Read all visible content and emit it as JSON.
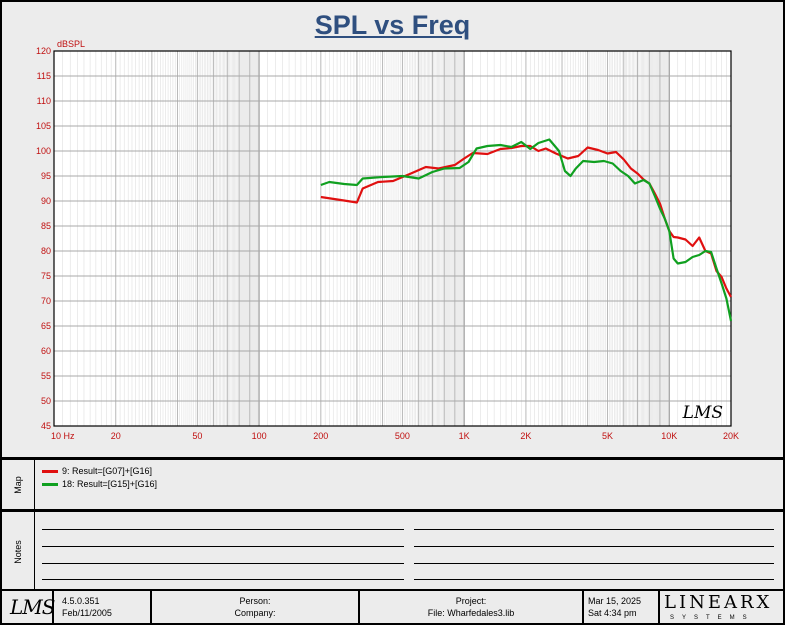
{
  "chart_data": {
    "type": "line",
    "title": "SPL vs Freq",
    "ylabel": "dBSPL",
    "xscale": "log",
    "xlim": [
      10,
      20000
    ],
    "ylim": [
      45,
      120
    ],
    "x_ticks": [
      {
        "value": 10,
        "label": "10  Hz"
      },
      {
        "value": 20,
        "label": "20"
      },
      {
        "value": 50,
        "label": "50"
      },
      {
        "value": 100,
        "label": "100"
      },
      {
        "value": 200,
        "label": "200"
      },
      {
        "value": 500,
        "label": "500"
      },
      {
        "value": 1000,
        "label": "1K"
      },
      {
        "value": 2000,
        "label": "2K"
      },
      {
        "value": 5000,
        "label": "5K"
      },
      {
        "value": 10000,
        "label": "10K"
      },
      {
        "value": 20000,
        "label": "20K"
      }
    ],
    "y_ticks": [
      45,
      50,
      55,
      60,
      65,
      70,
      75,
      80,
      85,
      90,
      95,
      100,
      105,
      110,
      115,
      120
    ],
    "grid": true,
    "watermark": "LMS",
    "series": [
      {
        "name": "9: Result=[G07]+[G16]",
        "color": "#e01010",
        "points": [
          [
            200,
            90.8
          ],
          [
            250,
            90.2
          ],
          [
            300,
            89.7
          ],
          [
            320,
            92.5
          ],
          [
            380,
            93.8
          ],
          [
            450,
            94.0
          ],
          [
            550,
            95.5
          ],
          [
            650,
            96.8
          ],
          [
            750,
            96.5
          ],
          [
            900,
            97.2
          ],
          [
            1000,
            98.5
          ],
          [
            1100,
            99.6
          ],
          [
            1300,
            99.4
          ],
          [
            1500,
            100.4
          ],
          [
            1700,
            100.6
          ],
          [
            1900,
            101.0
          ],
          [
            2100,
            101.0
          ],
          [
            2300,
            100.0
          ],
          [
            2500,
            100.5
          ],
          [
            2800,
            99.5
          ],
          [
            3200,
            98.5
          ],
          [
            3600,
            99.0
          ],
          [
            4000,
            100.7
          ],
          [
            4500,
            100.2
          ],
          [
            5000,
            99.5
          ],
          [
            5500,
            99.8
          ],
          [
            6000,
            98.3
          ],
          [
            6500,
            96.5
          ],
          [
            7000,
            95.5
          ],
          [
            7500,
            94.3
          ],
          [
            8000,
            93.5
          ],
          [
            8500,
            91.5
          ],
          [
            9000,
            89.5
          ],
          [
            9500,
            86.5
          ],
          [
            10000,
            84.0
          ],
          [
            10500,
            82.8
          ],
          [
            11000,
            82.7
          ],
          [
            12000,
            82.3
          ],
          [
            13000,
            81.0
          ],
          [
            14000,
            82.7
          ],
          [
            15000,
            80.0
          ],
          [
            16000,
            79.5
          ],
          [
            17000,
            76.0
          ],
          [
            18000,
            74.8
          ],
          [
            19000,
            72.5
          ],
          [
            20000,
            70.8
          ]
        ]
      },
      {
        "name": "18: Result=[G15]+[G16]",
        "color": "#10a020",
        "points": [
          [
            200,
            93.2
          ],
          [
            220,
            93.8
          ],
          [
            260,
            93.4
          ],
          [
            300,
            93.2
          ],
          [
            320,
            94.5
          ],
          [
            400,
            94.8
          ],
          [
            500,
            95.0
          ],
          [
            600,
            94.5
          ],
          [
            700,
            95.8
          ],
          [
            800,
            96.5
          ],
          [
            950,
            96.6
          ],
          [
            1050,
            97.8
          ],
          [
            1150,
            100.5
          ],
          [
            1300,
            101.0
          ],
          [
            1500,
            101.2
          ],
          [
            1700,
            100.8
          ],
          [
            1900,
            101.8
          ],
          [
            2100,
            100.4
          ],
          [
            2300,
            101.6
          ],
          [
            2600,
            102.3
          ],
          [
            2900,
            100.0
          ],
          [
            3100,
            96.0
          ],
          [
            3300,
            95.0
          ],
          [
            3500,
            96.5
          ],
          [
            3800,
            98.0
          ],
          [
            4300,
            97.8
          ],
          [
            4800,
            98.0
          ],
          [
            5300,
            97.5
          ],
          [
            5800,
            96.0
          ],
          [
            6300,
            95.0
          ],
          [
            6800,
            93.5
          ],
          [
            7500,
            94.2
          ],
          [
            8000,
            93.5
          ],
          [
            8500,
            91.0
          ],
          [
            9000,
            88.5
          ],
          [
            9500,
            86.5
          ],
          [
            10000,
            84.0
          ],
          [
            10500,
            78.5
          ],
          [
            11000,
            77.5
          ],
          [
            12000,
            77.8
          ],
          [
            13000,
            78.8
          ],
          [
            14000,
            79.2
          ],
          [
            15000,
            80.0
          ],
          [
            16000,
            79.8
          ],
          [
            17000,
            76.5
          ],
          [
            18000,
            73.5
          ],
          [
            19000,
            70.5
          ],
          [
            20000,
            66.0
          ]
        ]
      }
    ]
  },
  "panels": {
    "map_label": "Map",
    "notes_label": "Notes",
    "legend": [
      {
        "label": "9: Result=[G07]+[G16]",
        "color": "#e01010"
      },
      {
        "label": "18: Result=[G15]+[G16]",
        "color": "#10a020"
      }
    ]
  },
  "footer": {
    "logo": "LMS",
    "version": "4.5.0.351",
    "version_date": "Feb/11/2005",
    "person_label": "Person:",
    "company_label": "Company:",
    "project_label": "Project:",
    "file_label": "File: Wharfedales3.lib",
    "date": "Mar 15, 2025",
    "time": "Sat  4:34 pm",
    "brand": "LINEARX",
    "brand_sub": "SYSTEMS"
  }
}
